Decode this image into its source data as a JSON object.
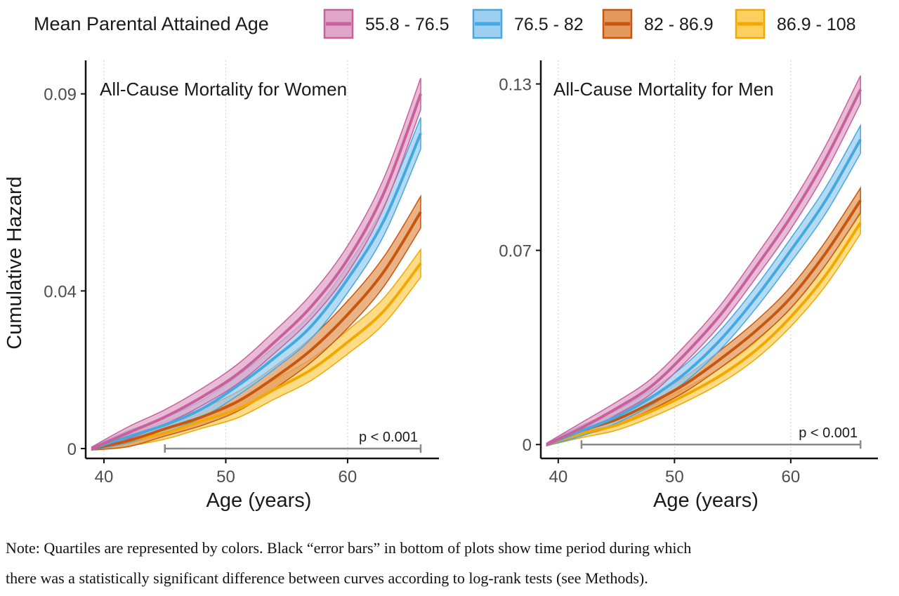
{
  "legend": {
    "title": "Mean Parental Attained Age",
    "entries": [
      {
        "label": "55.8 - 76.5",
        "color": "#c8609c",
        "fill": "#e0a6c8"
      },
      {
        "label": "76.5 - 82",
        "color": "#45a8e0",
        "fill": "#9ccff0"
      },
      {
        "label": "82 - 86.9",
        "color": "#c8560e",
        "fill": "#e3995c"
      },
      {
        "label": "86.9 - 108",
        "color": "#f2a800",
        "fill": "#fcd060"
      }
    ]
  },
  "chart_data": [
    {
      "type": "line",
      "title": "All-Cause Mortality for Women",
      "xlabel": "Age (years)",
      "ylabel": "Cumulative Hazard",
      "xlim": [
        38.5,
        67.5
      ],
      "ylim": [
        -0.0025,
        0.0985
      ],
      "xticks": [
        {
          "v": 40,
          "label": "40"
        },
        {
          "v": 50,
          "label": "50"
        },
        {
          "v": 60,
          "label": "60"
        }
      ],
      "yticks": [
        {
          "v": 0,
          "label": "0"
        },
        {
          "v": 0.04,
          "label": "0.04"
        },
        {
          "v": 0.09,
          "label": "0.09"
        }
      ],
      "grid": "vertical dotted",
      "x": [
        39,
        42,
        45,
        48,
        51,
        54,
        57,
        60,
        63,
        66
      ],
      "series": [
        {
          "name": "55.8 - 76.5",
          "values": [
            0,
            0.004,
            0.008,
            0.013,
            0.019,
            0.027,
            0.036,
            0.048,
            0.065,
            0.09
          ],
          "band": 0.004
        },
        {
          "name": "76.5 - 82",
          "values": [
            0,
            0.003,
            0.006,
            0.01,
            0.016,
            0.023,
            0.031,
            0.043,
            0.058,
            0.08
          ],
          "band": 0.004
        },
        {
          "name": "82 - 86.9",
          "values": [
            0,
            0.002,
            0.005,
            0.008,
            0.012,
            0.018,
            0.025,
            0.034,
            0.045,
            0.06
          ],
          "band": 0.004
        },
        {
          "name": "86.9 - 108",
          "values": [
            0,
            0.002,
            0.004,
            0.007,
            0.01,
            0.015,
            0.02,
            0.027,
            0.035,
            0.047
          ],
          "band": 0.0035
        }
      ],
      "significance": {
        "label": "p < 0.001",
        "from": 45,
        "to": 66
      }
    },
    {
      "type": "line",
      "title": "All-Cause Mortality for Men",
      "xlabel": "Age (years)",
      "ylabel": "",
      "xlim": [
        38.5,
        67.5
      ],
      "ylim": [
        -0.005,
        0.1385
      ],
      "xticks": [
        {
          "v": 40,
          "label": "40"
        },
        {
          "v": 50,
          "label": "50"
        },
        {
          "v": 60,
          "label": "60"
        }
      ],
      "yticks": [
        {
          "v": 0,
          "label": "0"
        },
        {
          "v": 0.07,
          "label": "0.07"
        },
        {
          "v": 0.13,
          "label": "0.13"
        }
      ],
      "grid": "vertical dotted",
      "x": [
        39,
        42,
        45,
        48,
        51,
        54,
        57,
        60,
        63,
        66
      ],
      "series": [
        {
          "name": "55.8 - 76.5",
          "values": [
            0,
            0.006,
            0.013,
            0.021,
            0.033,
            0.047,
            0.064,
            0.082,
            0.103,
            0.128
          ],
          "band": 0.005
        },
        {
          "name": "76.5 - 82",
          "values": [
            0,
            0.005,
            0.01,
            0.017,
            0.026,
            0.038,
            0.053,
            0.07,
            0.088,
            0.11
          ],
          "band": 0.005
        },
        {
          "name": "82 - 86.9",
          "values": [
            0,
            0.005,
            0.009,
            0.015,
            0.022,
            0.031,
            0.041,
            0.053,
            0.069,
            0.088
          ],
          "band": 0.0045
        },
        {
          "name": "86.9 - 108",
          "values": [
            0,
            0.004,
            0.007,
            0.012,
            0.018,
            0.025,
            0.034,
            0.046,
            0.061,
            0.08
          ],
          "band": 0.004
        }
      ],
      "significance": {
        "label": "p < 0.001",
        "from": 42,
        "to": 66
      }
    }
  ],
  "note": {
    "line1": "Note: Quartiles are represented by colors. Black “error bars” in bottom of plots show time period during which",
    "line2": "there was a statistically significant difference between curves according to log-rank tests (see Methods)."
  }
}
